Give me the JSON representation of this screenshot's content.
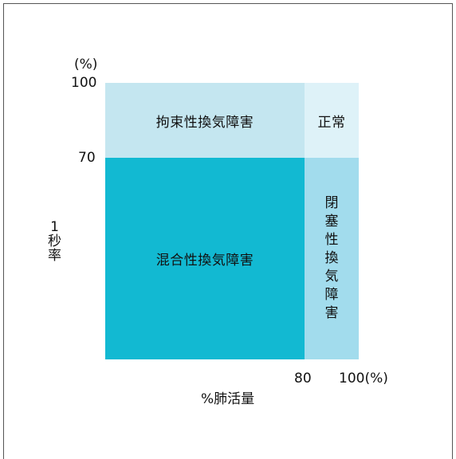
{
  "y_axis": {
    "unit": "(%)",
    "tick_100": "100",
    "tick_70": "70",
    "label_chars": [
      "1",
      "秒",
      "率"
    ]
  },
  "x_axis": {
    "tick_80": "80",
    "tick_100": "100(%)",
    "label": "%肺活量"
  },
  "regions": {
    "restrictive": "拘束性換気障害",
    "normal": "正常",
    "mixed": "混合性換気障害",
    "obstructive_chars": [
      "閉",
      "塞",
      "性",
      "換",
      "気",
      "障",
      "害"
    ]
  },
  "colors": {
    "restrictive": "#c4e6f0",
    "normal": "#def2f8",
    "mixed": "#12b9d2",
    "obstructive": "#a2dced"
  }
}
